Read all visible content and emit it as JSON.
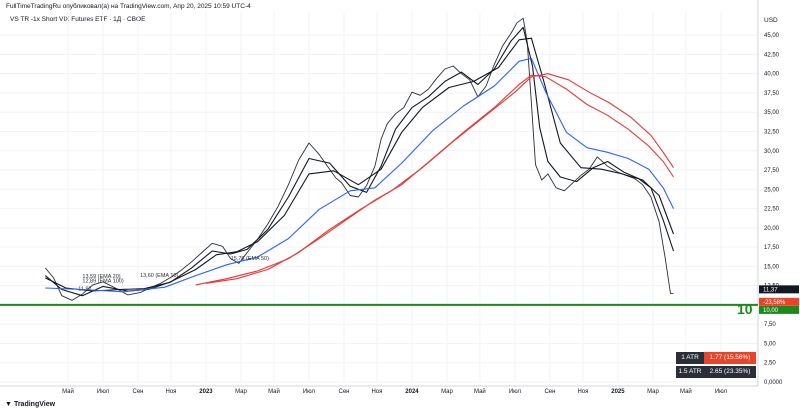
{
  "header": {
    "attribution": "FullTimeTradingRu опубликовал(а) на TradingView.com, Апр 20, 2025 10:59 UTC-4",
    "symbol_line": "VS TR -1x Short VIX Futures ETF · 1Д · CBOE"
  },
  "footer": {
    "logo_text": "TradingView",
    "logo_icon": "tradingview-logo-icon"
  },
  "annotation_big": "10",
  "atr_boxes": [
    {
      "label": "1 ATR",
      "value": "1.77 (15.56%)",
      "color": "#e8442a"
    },
    {
      "label": "1.5 ATR",
      "value": "2.65 (23.35%)",
      "color": "#2a2e39"
    }
  ],
  "colors": {
    "price": "#2a2e39",
    "ema_black": "#131722",
    "ema_blue": "#2962ff",
    "ema_red": "#e53935",
    "support": "#1b8a1b",
    "grid": "#f0f3fa"
  },
  "chart_data": {
    "type": "line",
    "title": "VS TR -1x Short VIX Futures ETF · 1Д · CBOE",
    "ylabel": "USD",
    "ylim": [
      0,
      48
    ],
    "y_ticks": [
      "45,00",
      "42,50",
      "40,00",
      "37,50",
      "35,00",
      "32,50",
      "30,00",
      "27,50",
      "25,00",
      "22,50",
      "20,00",
      "17,50",
      "15,00",
      "12,50",
      "10,00",
      "7,50",
      "5,00",
      "2,50",
      "0,0000"
    ],
    "x_ticks": [
      "Май",
      "Июл",
      "Сен",
      "Ноя",
      "2023",
      "Мар",
      "Май",
      "Июл",
      "Сен",
      "Ноя",
      "2024",
      "Мар",
      "Май",
      "Июл",
      "Сен",
      "Ноя",
      "2025",
      "Мар",
      "Май",
      "Июл"
    ],
    "x_tick_values": [
      2022.33,
      2022.5,
      2022.67,
      2022.83,
      2023.0,
      2023.17,
      2023.33,
      2023.5,
      2023.67,
      2023.83,
      2024.0,
      2024.17,
      2024.33,
      2024.5,
      2024.67,
      2024.83,
      2025.0,
      2025.17,
      2025.33,
      2025.5
    ],
    "xlim": [
      2022.0,
      2025.68
    ],
    "series": [
      {
        "role": "price",
        "color": "#2a2e39",
        "x": [
          2022.22,
          2022.26,
          2022.3,
          2022.35,
          2022.4,
          2022.45,
          2022.5,
          2022.56,
          2022.62,
          2022.68,
          2022.72,
          2022.78,
          2022.83,
          2022.88,
          2022.93,
          2022.98,
          2023.03,
          2023.08,
          2023.12,
          2023.16,
          2023.2,
          2023.25,
          2023.3,
          2023.35,
          2023.4,
          2023.45,
          2023.5,
          2023.55,
          2023.6,
          2023.63,
          2023.66,
          2023.7,
          2023.74,
          2023.78,
          2023.82,
          2023.85,
          2023.88,
          2023.92,
          2023.96,
          2024.0,
          2024.04,
          2024.08,
          2024.12,
          2024.16,
          2024.2,
          2024.24,
          2024.28,
          2024.32,
          2024.36,
          2024.4,
          2024.44,
          2024.48,
          2024.51,
          2024.54,
          2024.56,
          2024.57,
          2024.585,
          2024.6,
          2024.63,
          2024.66,
          2024.7,
          2024.74,
          2024.78,
          2024.82,
          2024.86,
          2024.9,
          2024.95,
          2025.0,
          2025.04,
          2025.08,
          2025.12,
          2025.16,
          2025.2,
          2025.23,
          2025.255,
          2025.27
        ],
        "y": [
          14.8,
          13.5,
          11.2,
          10.6,
          11.4,
          12.6,
          13.0,
          12.2,
          11.3,
          11.6,
          12.1,
          12.8,
          13.6,
          14.5,
          15.6,
          16.8,
          18.0,
          17.6,
          16.0,
          15.4,
          16.8,
          18.5,
          20.5,
          22.8,
          25.6,
          28.8,
          31.0,
          29.5,
          27.6,
          26.5,
          25.8,
          24.2,
          24.0,
          25.5,
          28.0,
          31.5,
          33.5,
          34.8,
          35.6,
          37.6,
          37.2,
          38.0,
          39.4,
          40.6,
          41.0,
          40.0,
          39.2,
          37.0,
          38.4,
          41.2,
          43.6,
          45.2,
          46.6,
          47.2,
          44.0,
          40.0,
          34.0,
          28.2,
          26.2,
          27.0,
          25.2,
          24.8,
          25.8,
          26.8,
          27.6,
          29.2,
          28.0,
          27.2,
          26.8,
          26.4,
          25.6,
          24.0,
          20.8,
          16.0,
          11.5,
          11.5
        ]
      },
      {
        "role": "ema-black-1",
        "color": "#131722",
        "x": [
          2022.22,
          2022.3,
          2022.4,
          2022.5,
          2022.62,
          2022.72,
          2022.83,
          2022.93,
          2023.03,
          2023.12,
          2023.2,
          2023.3,
          2023.4,
          2023.5,
          2023.6,
          2023.7,
          2023.78,
          2023.85,
          2023.92,
          2024.0,
          2024.08,
          2024.16,
          2024.24,
          2024.32,
          2024.4,
          2024.48,
          2024.54,
          2024.585,
          2024.62,
          2024.66,
          2024.72,
          2024.8,
          2024.88,
          2024.95,
          2025.03,
          2025.1,
          2025.16,
          2025.22,
          2025.27
        ],
        "y": [
          13.8,
          12.0,
          11.2,
          12.4,
          11.8,
          12.0,
          13.0,
          14.8,
          17.0,
          16.6,
          17.2,
          19.8,
          24.0,
          29.0,
          28.4,
          25.4,
          24.6,
          28.0,
          32.8,
          35.6,
          37.0,
          39.0,
          40.2,
          38.6,
          40.6,
          44.2,
          46.0,
          41.0,
          33.0,
          28.6,
          26.6,
          26.0,
          27.8,
          28.6,
          27.2,
          26.4,
          25.2,
          21.0,
          17.0
        ]
      },
      {
        "role": "ema-black-2",
        "color": "#131722",
        "x": [
          2022.22,
          2022.32,
          2022.45,
          2022.58,
          2022.7,
          2022.82,
          2022.95,
          2023.05,
          2023.15,
          2023.25,
          2023.38,
          2023.5,
          2023.62,
          2023.74,
          2023.85,
          2023.95,
          2024.05,
          2024.18,
          2024.3,
          2024.42,
          2024.52,
          2024.58,
          2024.64,
          2024.72,
          2024.82,
          2024.92,
          2025.02,
          2025.12,
          2025.2,
          2025.27
        ],
        "y": [
          13.5,
          12.2,
          11.8,
          12.0,
          12.1,
          12.9,
          14.6,
          16.5,
          16.9,
          18.2,
          21.6,
          27.0,
          27.4,
          25.6,
          27.6,
          32.4,
          35.6,
          38.2,
          39.0,
          40.8,
          44.4,
          44.6,
          39.0,
          31.0,
          27.8,
          27.6,
          27.0,
          26.2,
          24.2,
          19.2
        ]
      },
      {
        "role": "ema-blue",
        "color": "#2962ff",
        "x": [
          2022.22,
          2022.4,
          2022.6,
          2022.8,
          2022.95,
          2023.1,
          2023.25,
          2023.4,
          2023.55,
          2023.7,
          2023.82,
          2023.95,
          2024.1,
          2024.25,
          2024.4,
          2024.52,
          2024.58,
          2024.65,
          2024.75,
          2024.85,
          2024.95,
          2025.05,
          2025.15,
          2025.22,
          2025.27
        ],
        "y": [
          12.2,
          12.0,
          11.7,
          12.3,
          13.8,
          15.2,
          16.2,
          18.6,
          22.4,
          24.8,
          25.2,
          28.4,
          32.6,
          35.8,
          38.4,
          41.6,
          42.0,
          37.6,
          32.4,
          30.4,
          29.8,
          29.0,
          27.6,
          25.2,
          22.5
        ]
      },
      {
        "role": "ema-red-1",
        "color": "#e53935",
        "x": [
          2022.95,
          2023.1,
          2023.25,
          2023.4,
          2023.55,
          2023.7,
          2023.82,
          2023.95,
          2024.1,
          2024.25,
          2024.4,
          2024.52,
          2024.58,
          2024.65,
          2024.75,
          2024.85,
          2024.95,
          2025.05,
          2025.15,
          2025.22,
          2025.27
        ],
        "y": [
          12.6,
          13.4,
          14.4,
          16.0,
          18.6,
          21.4,
          23.6,
          25.6,
          29.0,
          32.4,
          35.6,
          38.6,
          39.8,
          39.6,
          38.0,
          36.0,
          34.6,
          32.8,
          30.6,
          28.6,
          26.6
        ]
      },
      {
        "role": "ema-red-2",
        "color": "#e53935",
        "x": [
          2023.0,
          2023.15,
          2023.3,
          2023.45,
          2023.6,
          2023.75,
          2023.9,
          2024.05,
          2024.2,
          2024.35,
          2024.5,
          2024.58,
          2024.66,
          2024.76,
          2024.86,
          2024.96,
          2025.06,
          2025.16,
          2025.22,
          2025.27
        ],
        "y": [
          12.8,
          13.4,
          14.6,
          16.8,
          19.8,
          22.4,
          24.8,
          27.8,
          31.2,
          34.4,
          37.6,
          39.6,
          40.0,
          39.2,
          37.6,
          36.2,
          34.4,
          32.0,
          29.8,
          27.8
        ]
      }
    ],
    "horizontal_lines": [
      {
        "y": 10.0,
        "color": "#1b8a1b",
        "label": "10,00"
      }
    ],
    "price_tags": [
      {
        "y": 11.37,
        "label": "11,37",
        "bg": "#131722"
      },
      {
        "y": 10.4,
        "label": "-23,58%",
        "bg": "#e8442a"
      },
      {
        "y": 10.0,
        "label": "10,00",
        "bg": "#1b8a1b"
      }
    ],
    "annotations": [
      {
        "x": 2022.4,
        "y": 13.5,
        "text": "13,59 (EMA 20)"
      },
      {
        "x": 2022.4,
        "y": 12.9,
        "text": "12,89 (EMA 100)"
      },
      {
        "x": 2022.38,
        "y": 11.9,
        "text": "11,97"
      },
      {
        "x": 2022.68,
        "y": 13.6,
        "text": "13,60 (EMA 10)"
      },
      {
        "x": 2023.12,
        "y": 15.8,
        "text": "15,78 (EMA 50)"
      }
    ]
  }
}
